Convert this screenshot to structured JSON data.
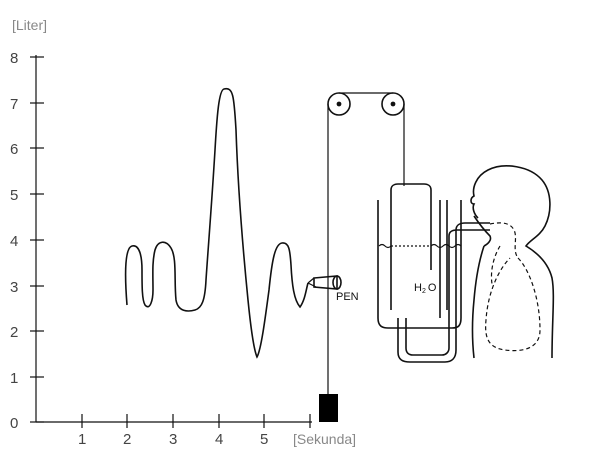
{
  "diagram": {
    "y_unit_label": "[Liter]",
    "x_unit_label": "[Sekunda]",
    "y_ticks": [
      "0",
      "1",
      "2",
      "3",
      "4",
      "5",
      "6",
      "7",
      "8"
    ],
    "x_ticks": [
      "1",
      "2",
      "3",
      "4",
      "5"
    ],
    "pen_label": "PEN",
    "water_label": "H",
    "water_subscript": "2",
    "water_label_end": "O"
  }
}
